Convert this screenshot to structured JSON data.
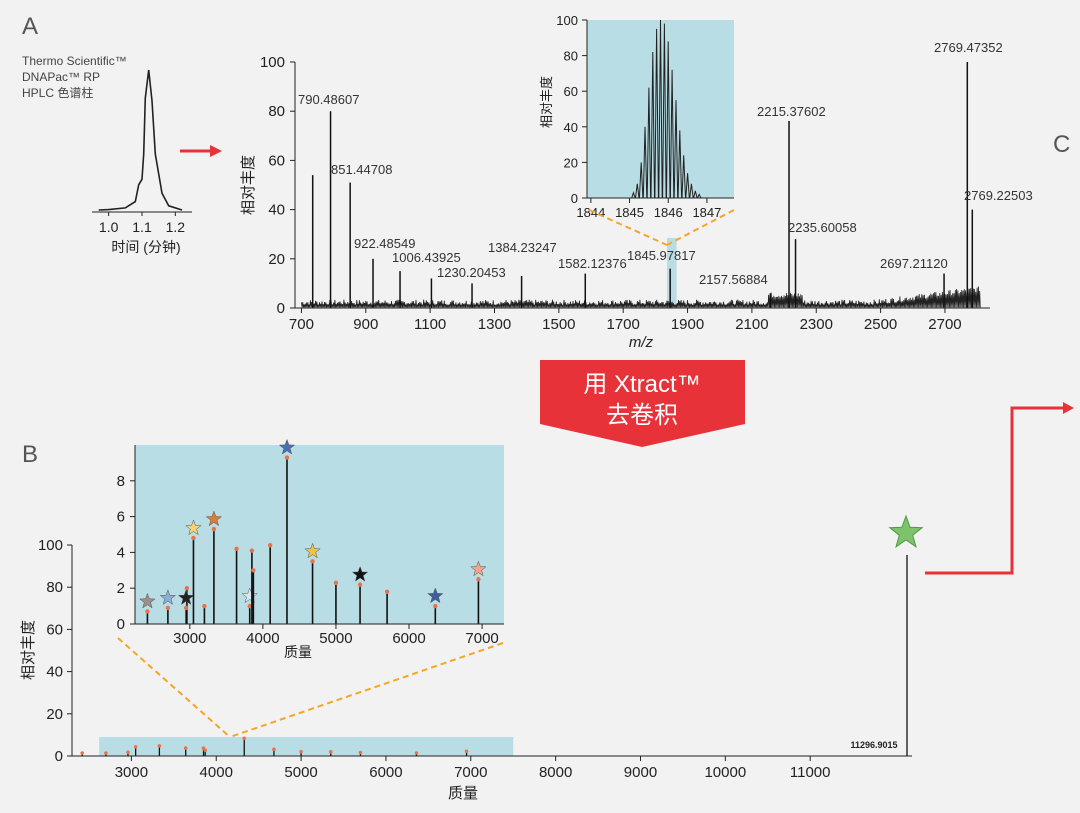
{
  "colors": {
    "background": "#f2f2f2",
    "inset_bg": "#b9dde4",
    "arrow_red": "#e8323a",
    "dashed_orange": "#f5a623",
    "peak_marker": "#e8734a",
    "star_green": "#7cc36b"
  },
  "panel_labels": {
    "a": "A",
    "b": "B",
    "c": "C"
  },
  "column": {
    "line1": "Thermo Scientific™",
    "line2": "DNAPac™ RP",
    "line3": "HPLC 色谱柱"
  },
  "xtract": {
    "line1": "用 Xtract™",
    "line2": "去卷积"
  },
  "chart_data": [
    {
      "id": "chromatogram",
      "type": "line",
      "xlabel": "时间 (分钟)",
      "xticks": [
        1.0,
        1.1,
        1.2
      ],
      "xlim": [
        0.95,
        1.25
      ],
      "x": [
        0.97,
        1.0,
        1.05,
        1.08,
        1.09,
        1.1,
        1.105,
        1.11,
        1.12,
        1.13,
        1.14,
        1.16,
        1.18,
        1.22
      ],
      "y": [
        0.0,
        0.3,
        1.5,
        6,
        18,
        22,
        40,
        80,
        100,
        78,
        40,
        12,
        3,
        0
      ]
    },
    {
      "id": "ms_spectrum",
      "type": "bar",
      "ylabel": "相对丰度",
      "xlabel": "m/z",
      "xlim": [
        680,
        2840
      ],
      "ylim": [
        0,
        100
      ],
      "yticks": [
        0,
        20,
        40,
        60,
        80,
        100
      ],
      "xticks": [
        700,
        900,
        1100,
        1300,
        1500,
        1700,
        1900,
        2100,
        2300,
        2500,
        2700
      ],
      "highlight_range": [
        1836,
        1866
      ],
      "peaks": [
        {
          "mz": 735,
          "y": 54
        },
        {
          "mz": 790.48607,
          "y": 80,
          "label": "790.48607"
        },
        {
          "mz": 851.44708,
          "y": 51,
          "label": "851.44708"
        },
        {
          "mz": 922.48549,
          "y": 20,
          "label": "922.48549"
        },
        {
          "mz": 1006.43925,
          "y": 15,
          "label": "1006.43925"
        },
        {
          "mz": 1104,
          "y": 12
        },
        {
          "mz": 1230.20453,
          "y": 10,
          "label": "1230.20453"
        },
        {
          "mz": 1384.23247,
          "y": 13,
          "label": "1384.23247"
        },
        {
          "mz": 1582.12376,
          "y": 14,
          "label": "1582.12376"
        },
        {
          "mz": 1845.97817,
          "y": 16,
          "label": "1845.97817"
        },
        {
          "mz": 2157.56884,
          "y": 6,
          "label": "2157.56884"
        },
        {
          "mz": 2215.37602,
          "y": 76,
          "label": "2215.37602"
        },
        {
          "mz": 2235.60058,
          "y": 28,
          "label": "2235.60058"
        },
        {
          "mz": 2697.2112,
          "y": 14,
          "label": "2697.21120"
        },
        {
          "mz": 2769.47352,
          "y": 100,
          "label": "2769.47352"
        },
        {
          "mz": 2769.22503,
          "y": 40,
          "label": "2769.22503"
        }
      ]
    },
    {
      "id": "isotope_inset",
      "type": "line",
      "ylabel": "相对丰度",
      "xlim": [
        1843.9,
        1847.7
      ],
      "ylim": [
        0,
        100
      ],
      "yticks": [
        0,
        20,
        40,
        60,
        80,
        100
      ],
      "xticks": [
        1844,
        1845,
        1846,
        1847
      ],
      "isotope_peaks": [
        {
          "x": 1845.1,
          "y": 3
        },
        {
          "x": 1845.2,
          "y": 8
        },
        {
          "x": 1845.3,
          "y": 20
        },
        {
          "x": 1845.4,
          "y": 40
        },
        {
          "x": 1845.5,
          "y": 62
        },
        {
          "x": 1845.6,
          "y": 82
        },
        {
          "x": 1845.7,
          "y": 95
        },
        {
          "x": 1845.8,
          "y": 100
        },
        {
          "x": 1845.9,
          "y": 98
        },
        {
          "x": 1846.0,
          "y": 88
        },
        {
          "x": 1846.1,
          "y": 72
        },
        {
          "x": 1846.2,
          "y": 55
        },
        {
          "x": 1846.3,
          "y": 38
        },
        {
          "x": 1846.4,
          "y": 24
        },
        {
          "x": 1846.5,
          "y": 14
        },
        {
          "x": 1846.6,
          "y": 8
        },
        {
          "x": 1846.7,
          "y": 4
        },
        {
          "x": 1846.8,
          "y": 2
        }
      ]
    },
    {
      "id": "deconvoluted_mass",
      "type": "bar",
      "ylabel": "相对丰度",
      "xlabel": "质量",
      "xlim": [
        2300,
        12200
      ],
      "ylim": [
        0,
        100
      ],
      "yticks": [
        0,
        20,
        40,
        60,
        80,
        100
      ],
      "xticks": [
        3000,
        4000,
        5000,
        6000,
        7000,
        8000,
        9000,
        10000,
        11000
      ],
      "highlight_range": [
        2620,
        7500
      ],
      "main_peak": {
        "mass": 11296.9015,
        "y": 100,
        "label": "11296.9015"
      },
      "small_peaks": [
        {
          "m": 2420,
          "y": 0.7
        },
        {
          "m": 2700,
          "y": 0.9
        },
        {
          "m": 2960,
          "y": 2
        },
        {
          "m": 3050,
          "y": 4.8
        },
        {
          "m": 3330,
          "y": 5.3
        },
        {
          "m": 3640,
          "y": 4.2
        },
        {
          "m": 3850,
          "y": 4.1
        },
        {
          "m": 3870,
          "y": 3
        },
        {
          "m": 4330,
          "y": 9.3
        },
        {
          "m": 4680,
          "y": 3.5
        },
        {
          "m": 5000,
          "y": 2.3
        },
        {
          "m": 5350,
          "y": 2.2
        },
        {
          "m": 5700,
          "y": 1.8
        },
        {
          "m": 6360,
          "y": 1
        },
        {
          "m": 6950,
          "y": 2.5
        }
      ]
    },
    {
      "id": "mass_inset",
      "type": "bar",
      "xlabel": "质量",
      "xlim": [
        2250,
        7300
      ],
      "ylim": [
        0,
        10
      ],
      "yticks": [
        0,
        2,
        4,
        6,
        8
      ],
      "xticks": [
        3000,
        4000,
        5000,
        6000,
        7000
      ],
      "peaks": [
        {
          "m": 2420,
          "y": 0.7,
          "star": "#9a8f8c"
        },
        {
          "m": 2700,
          "y": 0.9,
          "star": "#8aaed6"
        },
        {
          "m": 2960,
          "y": 2.0
        },
        {
          "m": 2950,
          "y": 0.9,
          "star": "#222222"
        },
        {
          "m": 3050,
          "y": 4.8,
          "star": "#f3d27a"
        },
        {
          "m": 3200,
          "y": 1.0
        },
        {
          "m": 3330,
          "y": 5.3,
          "star": "#e07a3a"
        },
        {
          "m": 3640,
          "y": 4.2
        },
        {
          "m": 3820,
          "y": 1.0,
          "star": "#d9e7f0"
        },
        {
          "m": 3850,
          "y": 4.1
        },
        {
          "m": 3870,
          "y": 3.0
        },
        {
          "m": 4100,
          "y": 4.4
        },
        {
          "m": 4330,
          "y": 9.3,
          "star": "#4a6fb5"
        },
        {
          "m": 4680,
          "y": 3.5,
          "star": "#f6c23b"
        },
        {
          "m": 5000,
          "y": 2.3
        },
        {
          "m": 5330,
          "y": 2.2,
          "star": "#111111"
        },
        {
          "m": 5700,
          "y": 1.8
        },
        {
          "m": 6360,
          "y": 1.0,
          "star": "#3e5f9c"
        },
        {
          "m": 6950,
          "y": 2.5,
          "star": "#f2a58a"
        }
      ]
    }
  ]
}
